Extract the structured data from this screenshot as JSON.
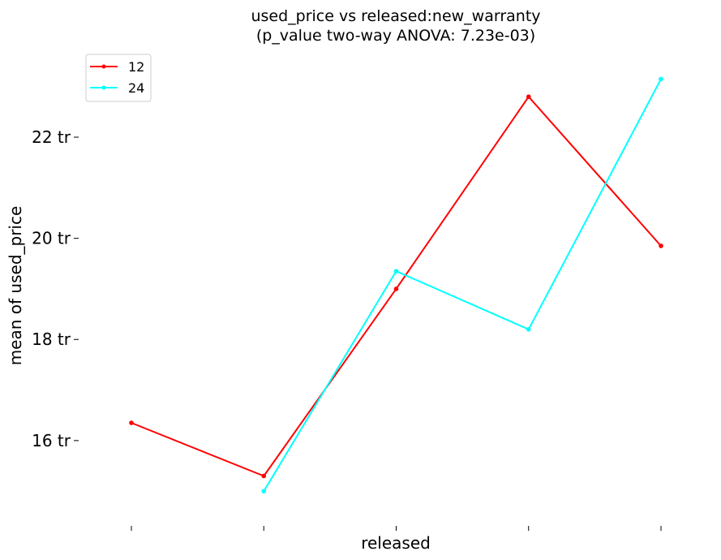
{
  "chart_data": {
    "type": "line",
    "title_line1": "used_price vs released:new_warranty",
    "title_line2": "(p_value two-way ANOVA: 7.23e-03)",
    "xlabel": "released",
    "ylabel": "mean of used_price",
    "categories": [
      "",
      "",
      "",
      "",
      ""
    ],
    "yticks": [
      {
        "value": 16,
        "label": "16 tr"
      },
      {
        "value": 18,
        "label": "18 tr"
      },
      {
        "value": 20,
        "label": "20 tr"
      },
      {
        "value": 22,
        "label": "22 tr"
      }
    ],
    "ylim": [
      14.2,
      23.75
    ],
    "grid": false,
    "legend_position": "top-left",
    "series": [
      {
        "name": "12",
        "color": "#ff0000",
        "values": [
          16.35,
          15.3,
          19.0,
          22.8,
          19.85
        ]
      },
      {
        "name": "24",
        "color": "#00ffff",
        "values": [
          null,
          15.0,
          19.35,
          18.2,
          23.15
        ]
      }
    ]
  }
}
